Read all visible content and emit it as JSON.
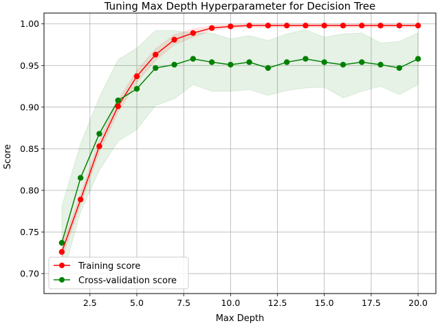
{
  "chart_data": {
    "type": "line",
    "title": "Tuning Max Depth Hyperparameter for Decision Tree",
    "xlabel": "Max Depth",
    "ylabel": "Score",
    "xlim": [
      0.05,
      20.95
    ],
    "ylim": [
      0.676,
      1.013
    ],
    "xticks": [
      2.5,
      5.0,
      7.5,
      10.0,
      12.5,
      15.0,
      17.5,
      20.0
    ],
    "xtick_labels": [
      "2.5",
      "5.0",
      "7.5",
      "10.0",
      "12.5",
      "15.0",
      "17.5",
      "20.0"
    ],
    "yticks": [
      0.7,
      0.75,
      0.8,
      0.85,
      0.9,
      0.95,
      1.0
    ],
    "ytick_labels": [
      "0.70",
      "0.75",
      "0.80",
      "0.85",
      "0.90",
      "0.95",
      "1.00"
    ],
    "grid": true,
    "legend_position": "lower-left",
    "x": [
      1,
      2,
      3,
      4,
      5,
      6,
      7,
      8,
      9,
      10,
      11,
      12,
      13,
      14,
      15,
      16,
      17,
      18,
      19,
      20
    ],
    "series": [
      {
        "name": "Training score",
        "color": "#ff0000",
        "values": [
          0.726,
          0.789,
          0.853,
          0.901,
          0.937,
          0.963,
          0.981,
          0.989,
          0.995,
          0.997,
          0.998,
          0.998,
          0.998,
          0.998,
          0.998,
          0.998,
          0.998,
          0.998,
          0.998,
          0.998
        ],
        "band_upper": [
          0.734,
          0.795,
          0.86,
          0.908,
          0.944,
          0.97,
          0.987,
          0.994,
          0.998,
          0.999,
          1.0,
          1.0,
          1.0,
          1.0,
          1.0,
          1.0,
          1.0,
          1.0,
          1.0,
          1.0
        ],
        "band_lower": [
          0.718,
          0.783,
          0.846,
          0.894,
          0.93,
          0.956,
          0.975,
          0.984,
          0.992,
          0.995,
          0.996,
          0.996,
          0.996,
          0.996,
          0.996,
          0.996,
          0.996,
          0.996,
          0.996,
          0.996
        ]
      },
      {
        "name": "Cross-validation score",
        "color": "#008000",
        "values": [
          0.737,
          0.815,
          0.868,
          0.908,
          0.922,
          0.947,
          0.951,
          0.958,
          0.954,
          0.951,
          0.954,
          0.947,
          0.954,
          0.958,
          0.954,
          0.951,
          0.954,
          0.951,
          0.947,
          0.958
        ],
        "band_upper": [
          0.781,
          0.856,
          0.912,
          0.957,
          0.971,
          0.992,
          0.992,
          0.989,
          0.989,
          0.982,
          0.986,
          0.98,
          0.988,
          0.993,
          0.984,
          0.988,
          0.989,
          0.977,
          0.979,
          0.989
        ],
        "band_lower": [
          0.693,
          0.774,
          0.824,
          0.859,
          0.873,
          0.902,
          0.91,
          0.927,
          0.919,
          0.919,
          0.921,
          0.914,
          0.92,
          0.923,
          0.924,
          0.911,
          0.919,
          0.925,
          0.915,
          0.927
        ]
      }
    ]
  }
}
